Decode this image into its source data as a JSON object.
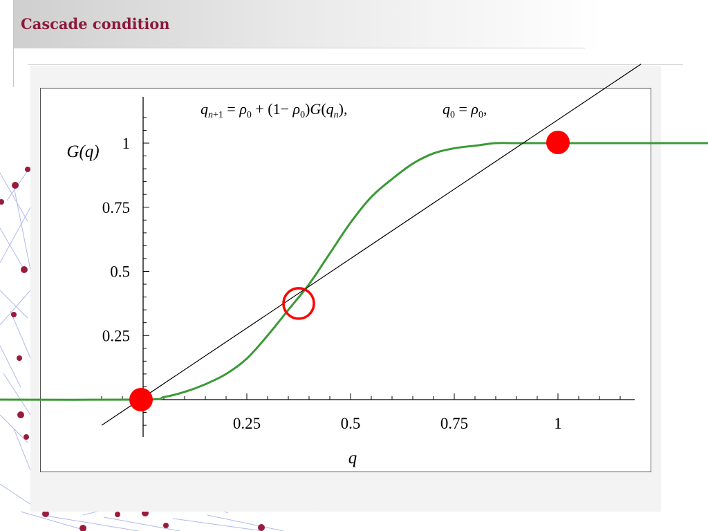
{
  "slide": {
    "title": "Cascade condition"
  },
  "equation": {
    "text": "q_{n+1} = ρ_0 + (1− ρ_0)G(q_n),        q_0 = ρ_0,"
  },
  "colors": {
    "title": "#8b1a3c",
    "curve": "#3a9a35",
    "fixed_point": "#ff0000",
    "diagonal": "#000000"
  },
  "chart_data": {
    "type": "line",
    "xlabel": "q",
    "ylabel": "G(q)",
    "xlim": [
      -0.2,
      1.35
    ],
    "ylim": [
      -0.12,
      1.13
    ],
    "x_ticks": [
      0.25,
      0.5,
      0.75,
      1
    ],
    "x_tick_labels": [
      "0.25",
      "0.5",
      "0.75",
      "1"
    ],
    "y_ticks": [
      0.25,
      0.5,
      0.75,
      1
    ],
    "y_tick_labels": [
      "0.25",
      "0.5",
      "0.75",
      "1"
    ],
    "grid": false,
    "series": [
      {
        "kind": "curve",
        "x": [
          -0.2,
          0.0,
          0.05,
          0.1,
          0.15,
          0.2,
          0.25,
          0.3,
          0.35,
          0.4,
          0.45,
          0.5,
          0.55,
          0.6,
          0.65,
          0.7,
          0.75,
          0.8,
          0.85,
          0.9,
          1.0,
          1.1,
          1.2,
          1.35
        ],
        "values": [
          0.0,
          0.0,
          0.01,
          0.03,
          0.06,
          0.1,
          0.16,
          0.25,
          0.35,
          0.45,
          0.57,
          0.69,
          0.79,
          0.86,
          0.92,
          0.96,
          0.98,
          0.99,
          1.0,
          1.0,
          1.0,
          1.0,
          1.0,
          1.0
        ]
      },
      {
        "kind": "diagonal",
        "x": [
          -0.1,
          1.2
        ],
        "values": [
          -0.1,
          1.2
        ]
      }
    ],
    "fixed_points": [
      {
        "x": 0.0,
        "y": 0.0,
        "stable": true
      },
      {
        "x": 0.375,
        "y": 0.375,
        "stable": false
      },
      {
        "x": 1.0,
        "y": 1.0,
        "stable": true
      }
    ]
  }
}
